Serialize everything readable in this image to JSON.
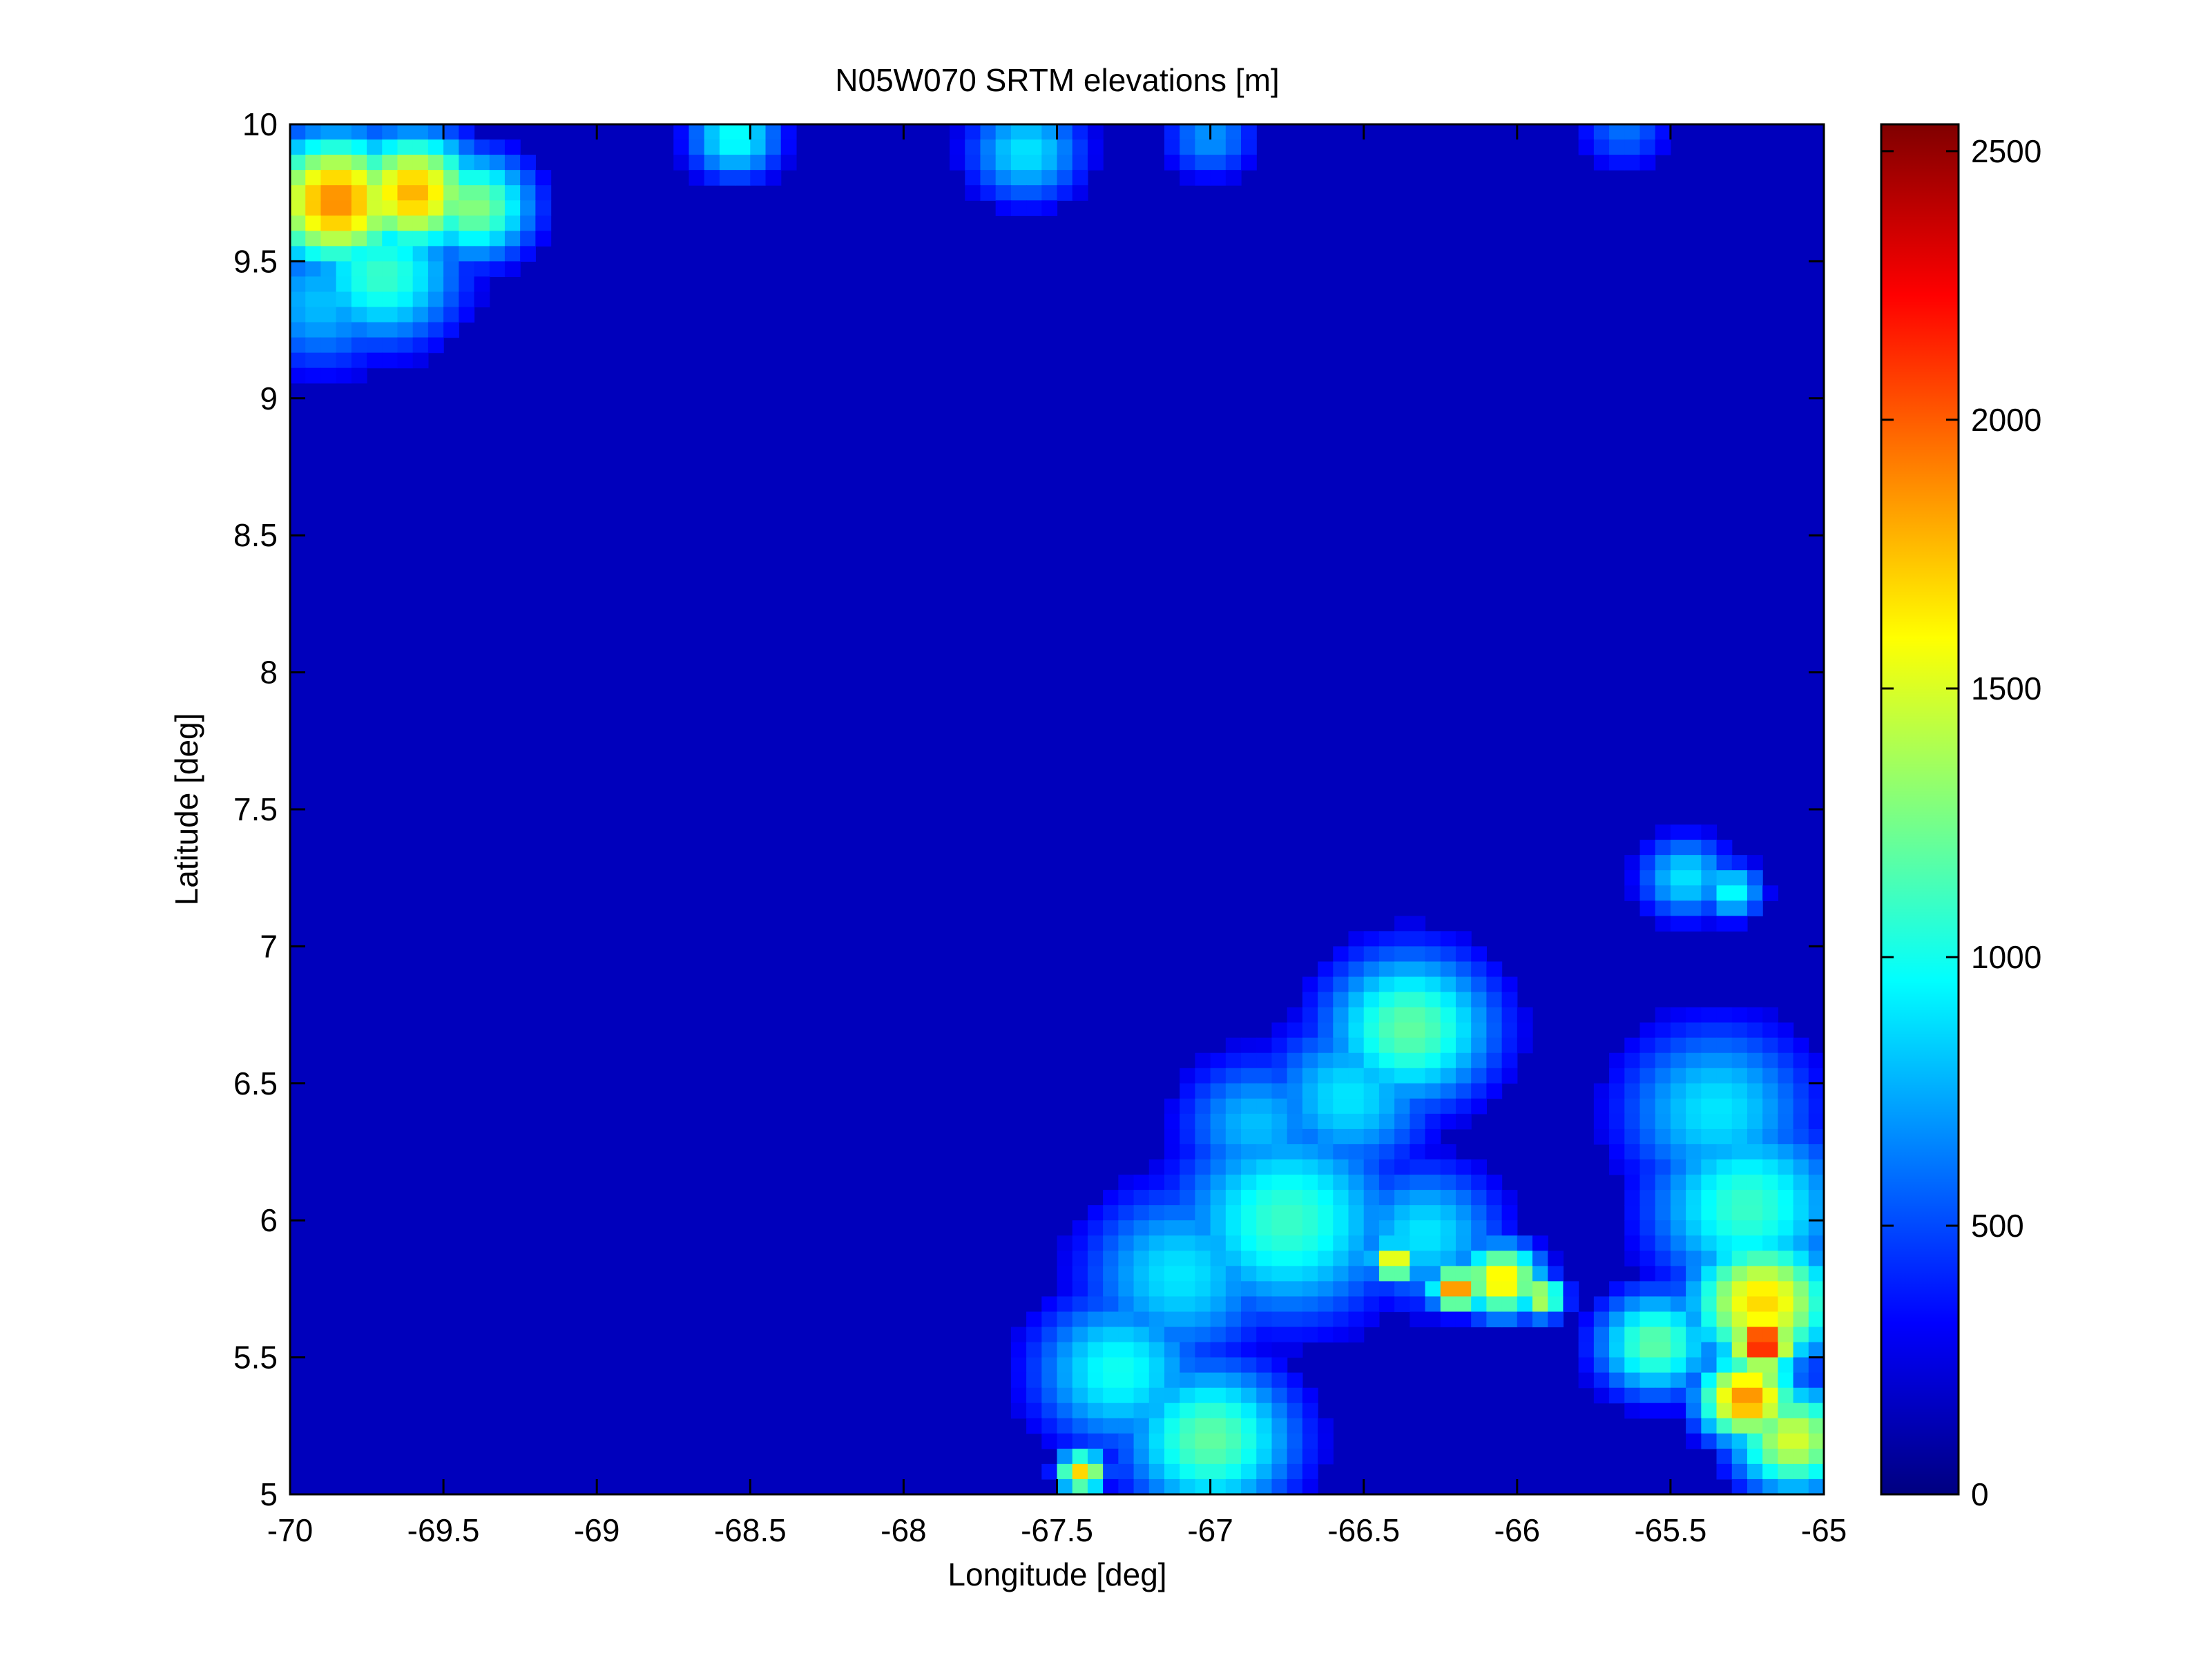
{
  "chart_data": {
    "type": "heatmap",
    "title": "N05W070 SRTM elevations [m]",
    "xlabel": "Longitude [deg]",
    "ylabel": "Latitude [deg]",
    "xlim": [
      -70,
      -65
    ],
    "ylim": [
      5,
      10
    ],
    "xticks": [
      "-70",
      "-69.5",
      "-69",
      "-68.5",
      "-68",
      "-67.5",
      "-67",
      "-66.5",
      "-66",
      "-65.5",
      "-65"
    ],
    "xtick_values": [
      -70,
      -69.5,
      -69,
      -68.5,
      -68,
      -67.5,
      -67,
      -66.5,
      -66,
      -65.5,
      -65
    ],
    "yticks": [
      "5",
      "5.5",
      "6",
      "6.5",
      "7",
      "7.5",
      "8",
      "8.5",
      "9",
      "9.5",
      "10"
    ],
    "ytick_values": [
      5,
      5.5,
      6,
      6.5,
      7,
      7.5,
      8,
      8.5,
      9,
      9.5,
      10
    ],
    "colorbar": {
      "colormap": "jet",
      "clim": [
        0,
        2550
      ],
      "ticks": [
        "0",
        "500",
        "1000",
        "1500",
        "2000",
        "2500"
      ],
      "tick_values": [
        0,
        500,
        1000,
        1500,
        2000,
        2500
      ]
    },
    "grid": false,
    "elevation_features": [
      {
        "lon": -69.85,
        "lat": 9.72,
        "elev": 1900,
        "r": 0.18
      },
      {
        "lon": -69.6,
        "lat": 9.75,
        "elev": 1800,
        "r": 0.16
      },
      {
        "lon": -69.4,
        "lat": 9.7,
        "elev": 1300,
        "r": 0.15
      },
      {
        "lon": -69.7,
        "lat": 9.45,
        "elev": 1100,
        "r": 0.2
      },
      {
        "lon": -69.9,
        "lat": 9.35,
        "elev": 800,
        "r": 0.2
      },
      {
        "lon": -68.55,
        "lat": 9.95,
        "elev": 1000,
        "r": 0.12
      },
      {
        "lon": -67.6,
        "lat": 9.9,
        "elev": 900,
        "r": 0.15
      },
      {
        "lon": -67.0,
        "lat": 9.95,
        "elev": 700,
        "r": 0.12
      },
      {
        "lon": -65.65,
        "lat": 9.98,
        "elev": 600,
        "r": 0.12
      },
      {
        "lon": -66.35,
        "lat": 6.7,
        "elev": 1200,
        "r": 0.22
      },
      {
        "lon": -66.55,
        "lat": 6.45,
        "elev": 900,
        "r": 0.22
      },
      {
        "lon": -66.85,
        "lat": 6.35,
        "elev": 800,
        "r": 0.2
      },
      {
        "lon": -66.75,
        "lat": 6.0,
        "elev": 1100,
        "r": 0.28
      },
      {
        "lon": -67.1,
        "lat": 5.8,
        "elev": 900,
        "r": 0.25
      },
      {
        "lon": -67.3,
        "lat": 5.45,
        "elev": 1000,
        "r": 0.22
      },
      {
        "lon": -67.0,
        "lat": 5.2,
        "elev": 1200,
        "r": 0.22
      },
      {
        "lon": -67.42,
        "lat": 5.08,
        "elev": 1700,
        "r": 0.06
      },
      {
        "lon": -66.3,
        "lat": 5.95,
        "elev": 900,
        "r": 0.2
      },
      {
        "lon": -66.4,
        "lat": 5.85,
        "elev": 1700,
        "r": 0.06
      },
      {
        "lon": -66.2,
        "lat": 5.75,
        "elev": 2000,
        "r": 0.06
      },
      {
        "lon": -66.05,
        "lat": 5.78,
        "elev": 1700,
        "r": 0.1
      },
      {
        "lon": -65.92,
        "lat": 5.72,
        "elev": 1500,
        "r": 0.06
      },
      {
        "lon": -65.55,
        "lat": 5.55,
        "elev": 1200,
        "r": 0.15
      },
      {
        "lon": -65.35,
        "lat": 6.4,
        "elev": 900,
        "r": 0.25
      },
      {
        "lon": -65.25,
        "lat": 6.05,
        "elev": 1100,
        "r": 0.25
      },
      {
        "lon": -65.2,
        "lat": 5.7,
        "elev": 1700,
        "r": 0.18
      },
      {
        "lon": -65.2,
        "lat": 5.55,
        "elev": 2300,
        "r": 0.08
      },
      {
        "lon": -65.25,
        "lat": 5.35,
        "elev": 1900,
        "r": 0.12
      },
      {
        "lon": -65.1,
        "lat": 5.2,
        "elev": 1500,
        "r": 0.15
      },
      {
        "lon": -65.45,
        "lat": 7.25,
        "elev": 900,
        "r": 0.12
      },
      {
        "lon": -65.3,
        "lat": 7.2,
        "elev": 1000,
        "r": 0.08
      }
    ]
  }
}
